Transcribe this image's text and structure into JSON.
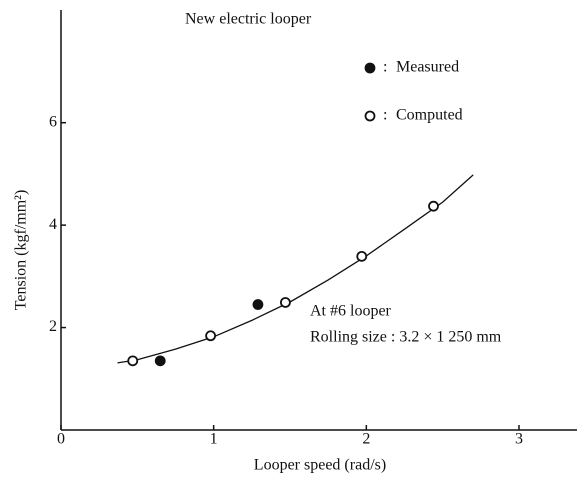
{
  "chart_data": {
    "type": "scatter",
    "title": "New electric looper",
    "x_label": "Looper speed (rad/s)",
    "y_label": "Tension (kgf/mm²)",
    "xlim": [
      0,
      3.38
    ],
    "ylim": [
      0,
      8.2
    ],
    "xticks": [
      0,
      1,
      2,
      3
    ],
    "yticks": [
      2,
      4,
      6
    ],
    "legend_separator": ":",
    "series": [
      {
        "name": "Measured",
        "color": "#111111",
        "marker": "filled",
        "x": [
          0.65,
          1.29
        ],
        "values": [
          1.35,
          2.45
        ]
      },
      {
        "name": "Computed",
        "color": "#111111",
        "marker": "open",
        "x": [
          0.47,
          0.98,
          1.47,
          1.97,
          2.44
        ],
        "values": [
          1.35,
          1.84,
          2.49,
          3.39,
          4.37
        ]
      }
    ],
    "curve": {
      "x": [
        0.37,
        0.5,
        0.75,
        1.0,
        1.25,
        1.5,
        1.75,
        2.0,
        2.25,
        2.5,
        2.7
      ],
      "values": [
        1.31,
        1.37,
        1.58,
        1.82,
        2.14,
        2.5,
        2.93,
        3.4,
        3.92,
        4.45,
        4.98
      ]
    },
    "annotations": [
      "At #6 looper",
      "Rolling size : 3.2 × 1 250 mm"
    ]
  }
}
